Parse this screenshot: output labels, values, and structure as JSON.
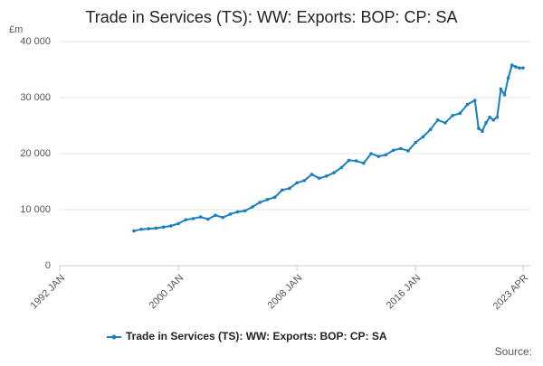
{
  "chart_data": {
    "type": "line",
    "title": "Trade in Services (TS): WW: Exports: BOP: CP: SA",
    "y_label": "£m",
    "source": "Source:",
    "xlim": [
      "1992 JAN",
      "2023 APR"
    ],
    "xticks": [
      "1992 JAN",
      "2000 JAN",
      "2008 JAN",
      "2016 JAN",
      "2023 APR"
    ],
    "ylim": [
      0,
      40000
    ],
    "yticks": [
      0,
      {
        "value": 10000,
        "label": "10 000"
      },
      {
        "value": 20000,
        "label": "20 000"
      },
      {
        "value": 30000,
        "label": "30 000"
      },
      {
        "value": 40000,
        "label": "40 000"
      }
    ],
    "grid": true,
    "legend": "bottom",
    "x": [
      "1997 JAN",
      "1997 JUL",
      "1998 JAN",
      "1998 JUL",
      "1999 JAN",
      "1999 JUL",
      "2000 JAN",
      "2000 JUL",
      "2001 JAN",
      "2001 JUL",
      "2002 JAN",
      "2002 JUL",
      "2003 JAN",
      "2003 JUL",
      "2004 JAN",
      "2004 JUL",
      "2005 JAN",
      "2005 JUL",
      "2006 JAN",
      "2006 JUL",
      "2007 JAN",
      "2007 JUL",
      "2008 JAN",
      "2008 JUL",
      "2009 JAN",
      "2009 JUL",
      "2010 JAN",
      "2010 JUL",
      "2011 JAN",
      "2011 JUL",
      "2012 JAN",
      "2012 JUL",
      "2013 JAN",
      "2013 JUL",
      "2014 JAN",
      "2014 JUL",
      "2015 JAN",
      "2015 JUL",
      "2016 JAN",
      "2016 JUL",
      "2017 JAN",
      "2017 JUL",
      "2018 JAN",
      "2018 JUL",
      "2019 JAN",
      "2019 JUL",
      "2020 JAN",
      "2020 APR",
      "2020 JUL",
      "2020 OCT",
      "2021 JAN",
      "2021 APR",
      "2021 JUL",
      "2021 OCT",
      "2022 JAN",
      "2022 APR",
      "2022 JUL",
      "2022 OCT",
      "2023 JAN",
      "2023 APR"
    ],
    "series": [
      {
        "name": "Trade in Services (TS): WW: Exports: BOP: CP: SA",
        "color": "#1a7fc1",
        "values": [
          6200,
          6500,
          6600,
          6700,
          6900,
          7100,
          7500,
          8200,
          8400,
          8700,
          8300,
          9000,
          8600,
          9200,
          9600,
          9800,
          10500,
          11300,
          11800,
          12200,
          13500,
          13800,
          14800,
          15200,
          16300,
          15600,
          16000,
          16600,
          17500,
          18800,
          18700,
          18300,
          20000,
          19500,
          19800,
          20600,
          20900,
          20500,
          22000,
          23000,
          24300,
          26000,
          25500,
          26800,
          27200,
          28800,
          29500,
          24500,
          24000,
          25500,
          26500,
          26000,
          26500,
          31500,
          30500,
          33500,
          35800,
          35500,
          35300,
          35300
        ]
      }
    ]
  }
}
